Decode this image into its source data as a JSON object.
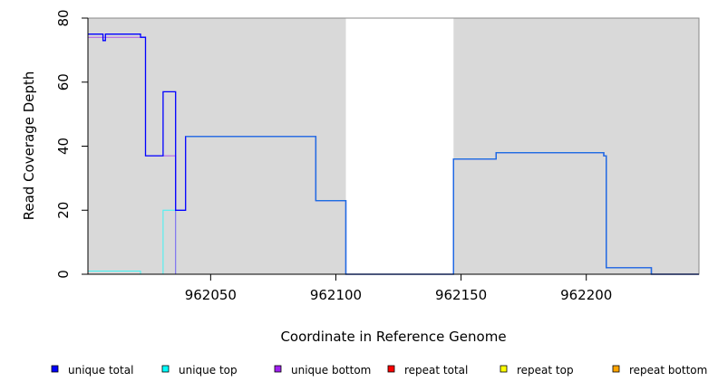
{
  "chart_data": {
    "type": "line",
    "title": "",
    "xlabel": "Coordinate in Reference Genome",
    "ylabel": "Read Coverage Depth",
    "xlim": [
      962001,
      962245
    ],
    "ylim": [
      0,
      80
    ],
    "x_ticks": [
      962050,
      962100,
      962150,
      962200
    ],
    "y_ticks": [
      0,
      20,
      40,
      60,
      80
    ],
    "x_tick_labels": [
      "962050",
      "962100",
      "962150",
      "962200"
    ],
    "y_tick_labels": [
      "0",
      "20",
      "40",
      "60",
      "80"
    ],
    "grid": false,
    "background_color": "#d9d9d9",
    "unshaded_regions": [
      [
        962104,
        962147
      ]
    ],
    "legend_position": "bottom",
    "series": [
      {
        "name": "unique total",
        "color": "#0000ff",
        "steps": [
          [
            962001,
            75
          ],
          [
            962007,
            73
          ],
          [
            962008,
            75
          ],
          [
            962022,
            74
          ],
          [
            962024,
            37
          ],
          [
            962031,
            57
          ],
          [
            962036,
            20
          ],
          [
            962040,
            43
          ],
          [
            962092,
            23
          ],
          [
            962104,
            0
          ],
          [
            962147,
            36
          ],
          [
            962164,
            38
          ],
          [
            962207,
            37
          ],
          [
            962208,
            2
          ],
          [
            962226,
            0
          ],
          [
            962245,
            0
          ]
        ]
      },
      {
        "name": "unique top",
        "color": "#00ffff",
        "steps": [
          [
            962001,
            1
          ],
          [
            962022,
            0
          ],
          [
            962031,
            20
          ],
          [
            962036,
            0
          ],
          [
            962245,
            0
          ]
        ]
      },
      {
        "name": "unique bottom",
        "color": "#a020f0",
        "steps": [
          [
            962001,
            74
          ],
          [
            962022,
            74
          ],
          [
            962024,
            37
          ],
          [
            962036,
            0
          ],
          [
            962245,
            0
          ]
        ]
      },
      {
        "name": "repeat total",
        "color": "#ff0000",
        "steps": [
          [
            962001,
            0
          ],
          [
            962245,
            0
          ]
        ]
      },
      {
        "name": "repeat top",
        "color": "#ffff00",
        "steps": [
          [
            962001,
            0
          ],
          [
            962245,
            0
          ]
        ]
      },
      {
        "name": "repeat bottom",
        "color": "#ffa500",
        "steps": [
          [
            962001,
            0
          ],
          [
            962245,
            0
          ]
        ]
      }
    ],
    "overlay_series": {
      "name": "",
      "color": "#1e6fe0",
      "steps": [
        [
          962040,
          43
        ],
        [
          962092,
          23
        ],
        [
          962104,
          0
        ],
        [
          962147,
          36
        ],
        [
          962164,
          38
        ],
        [
          962207,
          37
        ],
        [
          962208,
          2
        ],
        [
          962226,
          0
        ],
        [
          962245,
          0
        ]
      ]
    }
  }
}
